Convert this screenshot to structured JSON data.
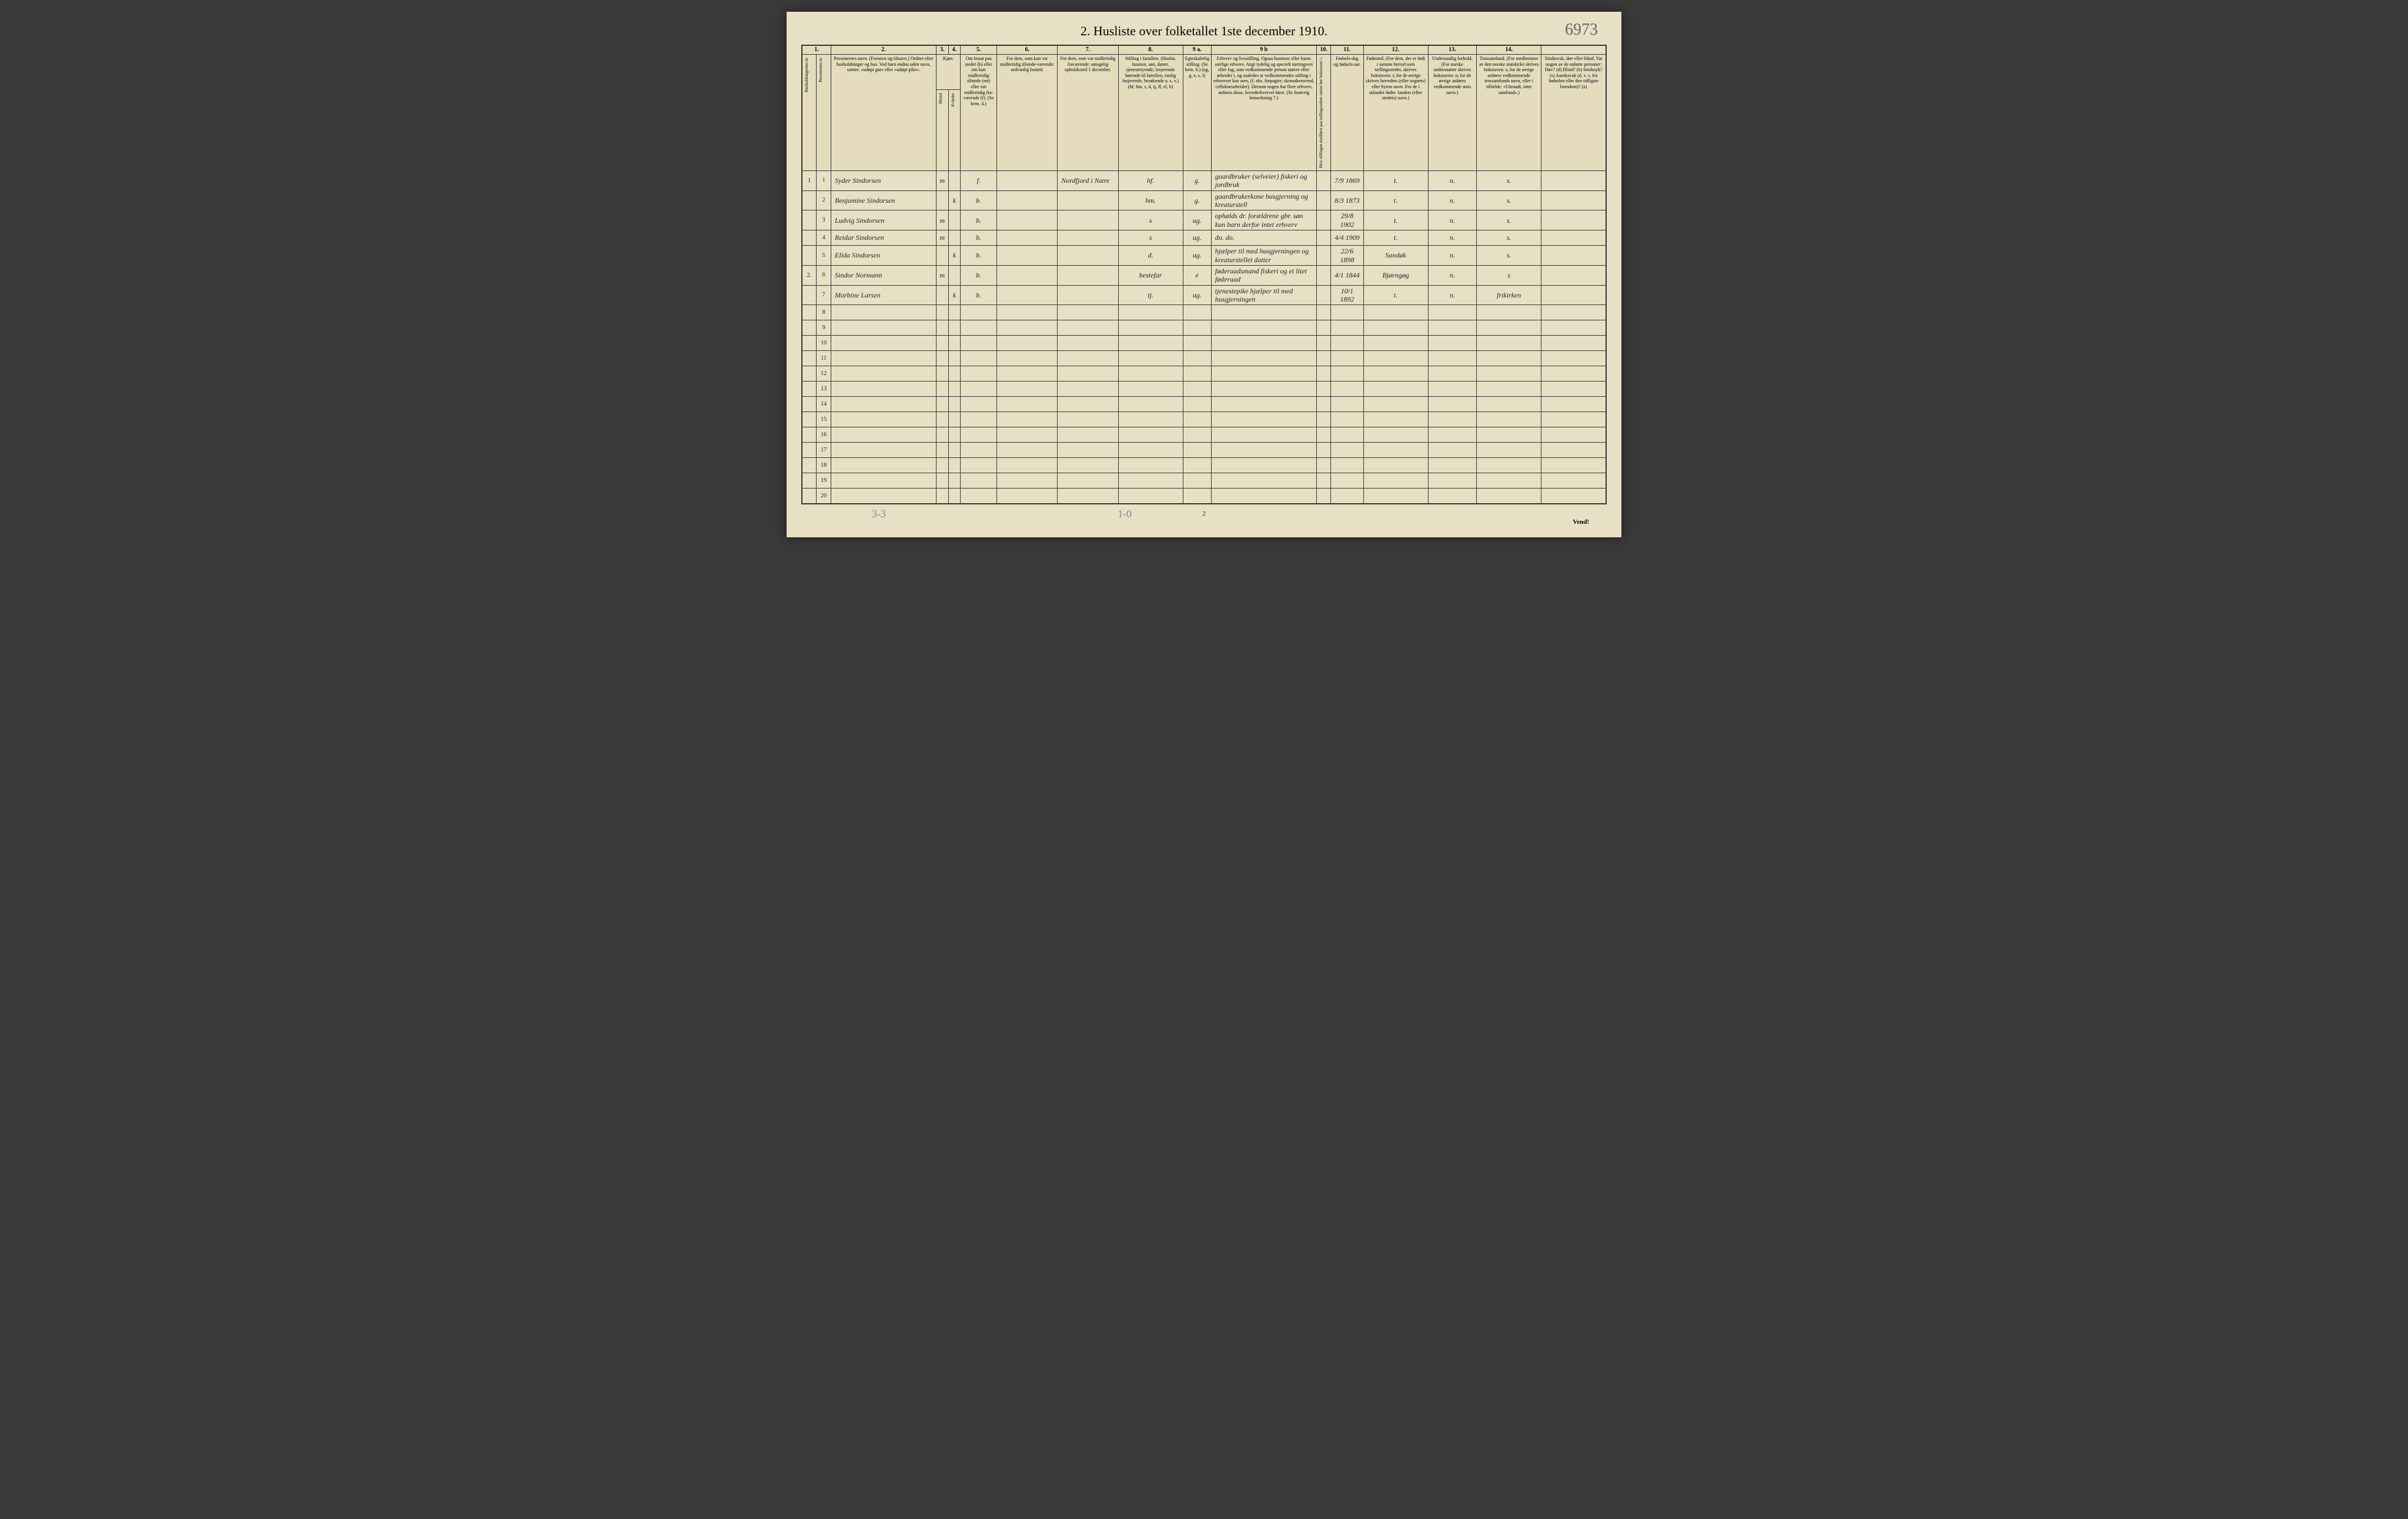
{
  "colors": {
    "paper": "#e8e0c4",
    "ink": "#222222",
    "border": "#333333",
    "red_ink": "#b84030",
    "pencil": "#888888",
    "background": "#3a3a3a"
  },
  "typography": {
    "title_fontsize": 22,
    "header_fontsize": 8,
    "cell_fontsize": 12
  },
  "title": "2.  Husliste over folketallet 1ste december 1910.",
  "page_annotation": "6973",
  "footer": {
    "left_pencil": "3-3",
    "mid_pencil": "1-0",
    "center_page": "2",
    "vend": "Vend!"
  },
  "columns": {
    "numbers": [
      "1.",
      "2.",
      "3.",
      "4.",
      "5.",
      "6.",
      "7.",
      "8.",
      "9 a.",
      "9 b",
      "10.",
      "11.",
      "12.",
      "13.",
      "14."
    ],
    "h1": {
      "hh": "Husholdningernes nr.",
      "pn": "Personernes nr.",
      "name": "Personernes navn.\n(Fornavn og tilnavn.)\nOrdnet efter husholdninger og hus.\nVed barn endnu uden navn, sættes: «udøpt gut» eller «udøpt pike».",
      "sex": "Kjøn.",
      "sex_m": "Mænd.",
      "sex_k": "Kvinder.",
      "res": "Om bosat paa stedet (b) eller om kun midlertidig tilstede (mt) eller om midlertidig fra-værende (f).\n(Se bem. 4.)",
      "usual": "For dem, som kun var midlertidig tilstede-værende:\nsedvanlig bosted.",
      "temp": "For dem, som var midlertidig fraværende:\nantagelig opholdssted 1 december.",
      "fam": "Stilling i familien.\n(Husfar, husmor, søn, datter, tjenestetyende, losjerende hørende til familien, enslig losjerende, besøkende o. s. v.)\n(hf, hm, s, d, tj, fl, el, b)",
      "mar": "Egteskabelig stilling.\n(Se bem. 6.)\n(ug, g, e, s, f)",
      "occ": "Erhverv og livsstilling.\nOgsaa husmors eller barns særlige erhverv.\nAngi tydelig og specielt næringsvei eller fag, som vedkommende person utøver eller arbeider i, og saaledes at vedkommendes stilling i erhvervet kan sees, (f. eks. forpagter, skomakersvend, cellulosearbeider). Dersom nogen har flere erhverv, anføres disse, hovederhvervet først.\n(Se forøvrig bemerkning 7.)",
      "dep": "Hvis stillingen medfører paa tællingsseden: sættes her bokstaven: t.",
      "birth": "Fødsels-dag og fødsels-aar.",
      "bplace": "Fødested.\n(For dem, der er født i samme herred som tællingsstedet, skrives bokstaven: t; for de øvrige skrives herredets (eller sognets) eller byens navn. For de i utlandet fødte: landets (eller stedets) navn.)",
      "nat": "Undersaatlig forhold.\n(For norske undersaatter skrives bokstaven: n; for de øvrige anføres vedkommende stats navn.)",
      "rel": "Trossamfund.\n(For medlemmer av den norske statskirke skrives bokstaven: s; for de øvrige anføres vedkommende trossamfunds navn, eller i tilfælde: «Uttraadt, intet samfund».)",
      "dis": "Sindssvak, døv eller blind.\nVar nogen av de anførte personer:\nDøv? (d)\nBlind? (b)\nSindssyk? (s)\nAandssvak (d. v. s. fra fødselen eller den tidligste barndom)? (a)"
    }
  },
  "row_count": 20,
  "rows": [
    {
      "hh": "1",
      "pn": "1",
      "name": "Syder Sindorsen",
      "sex_m": "m",
      "sex_k": "",
      "res": "f.",
      "usual": "",
      "temp": "Nordfjord i Nære",
      "fam": "hf.",
      "mar": "g.",
      "occ": "gaardbruker (selveier) fiskeri og jordbruk",
      "dep": "",
      "birth": "7/9 1869",
      "bplace": "t.",
      "nat": "n.",
      "rel": "s.",
      "dis": ""
    },
    {
      "hh": "",
      "pn": "2",
      "name": "Benjamine Sindorsen",
      "sex_m": "",
      "sex_k": "k",
      "res": "b.",
      "usual": "",
      "temp": "",
      "fam": "hm.",
      "mar": "g.",
      "occ": "gaardbrukerkone husgjerning og kreaturstell",
      "dep": "",
      "birth": "8/3 1873",
      "bplace": "t.",
      "nat": "n.",
      "rel": "s.",
      "dis": ""
    },
    {
      "hh": "",
      "pn": "3",
      "name": "Ludvig Sindorsen",
      "sex_m": "m",
      "sex_k": "",
      "res": "b.",
      "usual": "",
      "temp": "",
      "fam": "s",
      "mar": "ug.",
      "occ": "ophølds dr. forældrene gbr. søn kun barn derfor intet erhverv",
      "dep": "",
      "birth": "29/8 1902",
      "bplace": "t.",
      "nat": "n.",
      "rel": "s.",
      "dis": ""
    },
    {
      "hh": "",
      "pn": "4",
      "name": "Reidar Sindorsen",
      "sex_m": "m",
      "sex_k": "",
      "res": "b.",
      "usual": "",
      "temp": "",
      "fam": "s",
      "mar": "ug.",
      "occ": "do.            do.",
      "dep": "",
      "birth": "4/4 1909",
      "bplace": "t.",
      "nat": "n.",
      "rel": "s.",
      "dis": ""
    },
    {
      "hh": "",
      "pn": "5",
      "name": "Elida Sindorsen",
      "sex_m": "",
      "sex_k": "k",
      "res": "b.",
      "usual": "",
      "temp": "",
      "fam": "d.",
      "mar": "ug.",
      "occ": "hjælper til med husgjerningen og kreaturstellet  datter",
      "dep": "",
      "birth": "22/6 1898",
      "bplace": "Sandøk",
      "bplace_red": true,
      "nat": "n.",
      "rel": "s.",
      "dis": ""
    },
    {
      "hh": "2.",
      "pn": "6",
      "name": "Sindor Normann",
      "sex_m": "m",
      "sex_k": "",
      "res": "b.",
      "usual": "",
      "temp": "",
      "fam": "bestefar",
      "mar": "e",
      "occ": "føderaadsmand fiskeri og et litet føderaad",
      "dep": "",
      "birth": "4/1 1844",
      "bplace": "Bjørngøg",
      "nat": "n.",
      "rel": "s",
      "dis": ""
    },
    {
      "hh": "",
      "pn": "7",
      "name": "Morbine Larsen",
      "sex_m": "",
      "sex_k": "k",
      "res": "b.",
      "usual": "",
      "temp": "",
      "fam": "tj.",
      "mar": "ug.",
      "occ": "tjenestepike hjælper til med husgjerningen",
      "dep": "",
      "birth": "10/1 1892",
      "bplace": "t.",
      "nat": "n.",
      "rel": "frikirken",
      "dis": ""
    }
  ]
}
